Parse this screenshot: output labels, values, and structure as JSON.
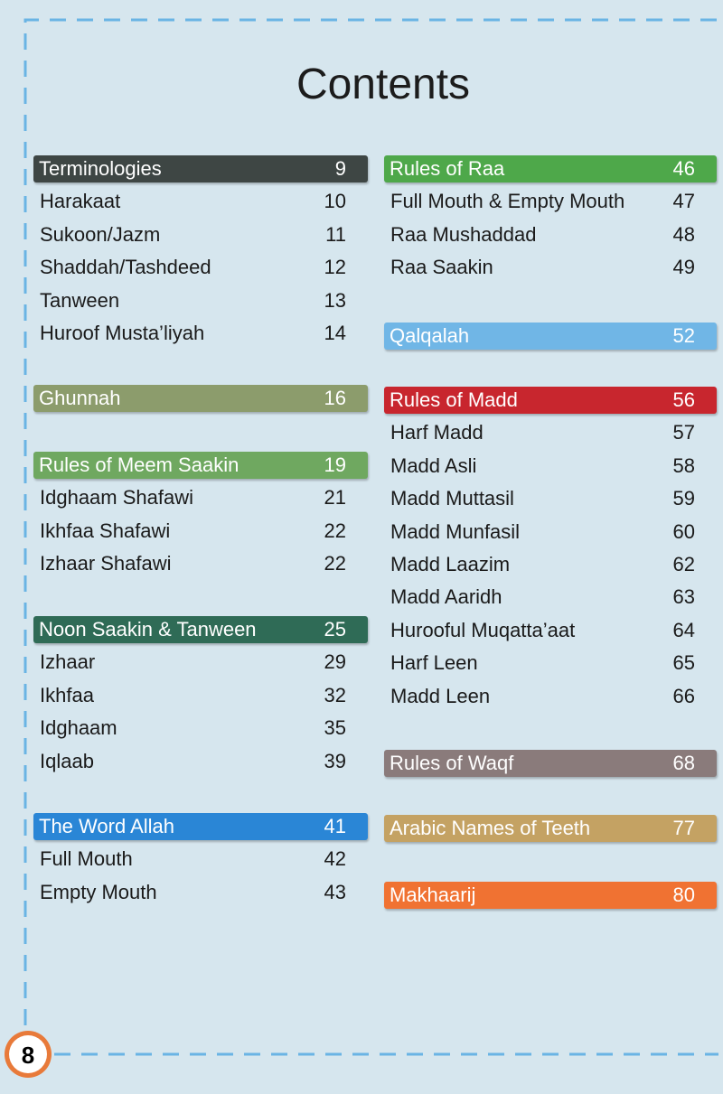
{
  "title": "Contents",
  "page_number": "8",
  "left_column": [
    {
      "header": "Terminologies",
      "page": 9,
      "color": "#3e4644",
      "items": [
        [
          "Harakaat",
          10
        ],
        [
          "Sukoon/Jazm",
          11
        ],
        [
          "Shaddah/Tashdeed",
          12
        ],
        [
          "Tanween",
          13
        ],
        [
          "Huroof Musta’liyah",
          14
        ]
      ]
    },
    {
      "header": "Ghunnah",
      "page": 16,
      "color": "#8c9c6c",
      "items": []
    },
    {
      "header": "Rules of Meem Saakin",
      "page": 19,
      "color": "#6fa860",
      "items": [
        [
          "Idghaam Shafawi",
          21
        ],
        [
          "Ikhfaa Shafawi",
          22
        ],
        [
          "Izhaar Shafawi",
          22
        ]
      ]
    },
    {
      "header": "Noon Saakin & Tanween",
      "page": 25,
      "color": "#2f6b56",
      "items": [
        [
          "Izhaar",
          29
        ],
        [
          "Ikhfaa",
          32
        ],
        [
          "Idghaam",
          35
        ],
        [
          "Iqlaab",
          39
        ]
      ]
    },
    {
      "header": "The Word Allah",
      "page": 41,
      "color": "#2a86d6",
      "items": [
        [
          "Full Mouth",
          42
        ],
        [
          "Empty Mouth",
          43
        ]
      ]
    }
  ],
  "right_column": [
    {
      "header": "Rules of Raa",
      "page": 46,
      "color": "#4ea84a",
      "items": [
        [
          "Full Mouth & Empty Mouth",
          47
        ],
        [
          "Raa Mushaddad",
          48
        ],
        [
          "Raa Saakin",
          49
        ]
      ]
    },
    {
      "header": "Qalqalah",
      "page": 52,
      "color": "#70b6e6",
      "items": []
    },
    {
      "header": "Rules of Madd",
      "page": 56,
      "color": "#c8262e",
      "items": [
        [
          "Harf Madd",
          57
        ],
        [
          "Madd Asli",
          58
        ],
        [
          "Madd Muttasil",
          59
        ],
        [
          "Madd Munfasil",
          60
        ],
        [
          "Madd Laazim",
          62
        ],
        [
          "Madd Aaridh",
          63
        ],
        [
          "Hurooful Muqatta’aat",
          64
        ],
        [
          "Harf Leen",
          65
        ],
        [
          "Madd Leen",
          66
        ]
      ]
    },
    {
      "header": "Rules of Waqf",
      "page": 68,
      "color": "#8a7b7b",
      "items": []
    },
    {
      "header": "Arabic Names of Teeth",
      "page": 77,
      "color": "#c4a263",
      "items": []
    },
    {
      "header": "Makhaarij",
      "page": 80,
      "color": "#f07232",
      "items": []
    }
  ]
}
